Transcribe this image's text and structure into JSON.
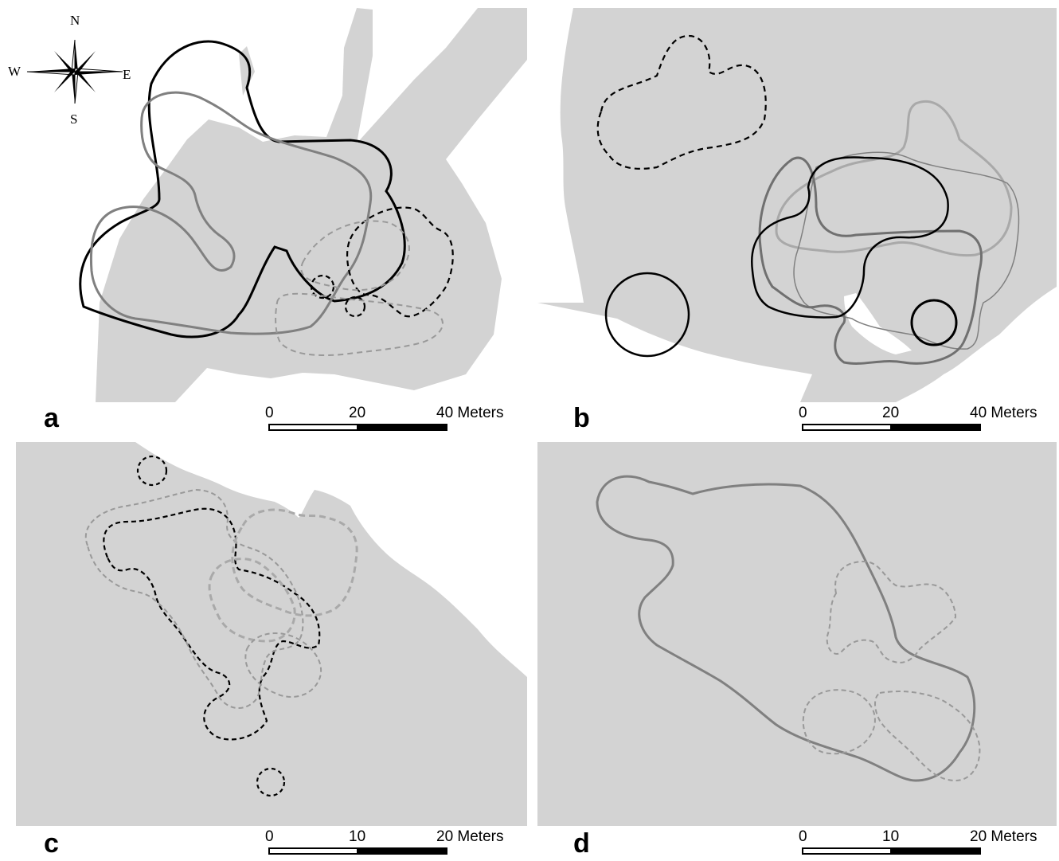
{
  "panels": [
    {
      "id": "a",
      "label": "a",
      "scale": {
        "ticks": [
          "0",
          "20",
          "40 Meters"
        ]
      }
    },
    {
      "id": "b",
      "label": "b",
      "scale": {
        "ticks": [
          "0",
          "20",
          "40 Meters"
        ]
      }
    },
    {
      "id": "c",
      "label": "c",
      "scale": {
        "ticks": [
          "0",
          "10",
          "20 Meters"
        ]
      }
    },
    {
      "id": "d",
      "label": "d",
      "scale": {
        "ticks": [
          "0",
          "10",
          "20 Meters"
        ]
      }
    }
  ],
  "compass": {
    "north": "N",
    "south": "S",
    "east": "E",
    "west": "W"
  },
  "colors": {
    "land": "#d3d3d3",
    "water": "#ffffff",
    "range_black": "#000000",
    "range_dark_gray": "#808080",
    "range_light_gray": "#a9a9a9"
  }
}
